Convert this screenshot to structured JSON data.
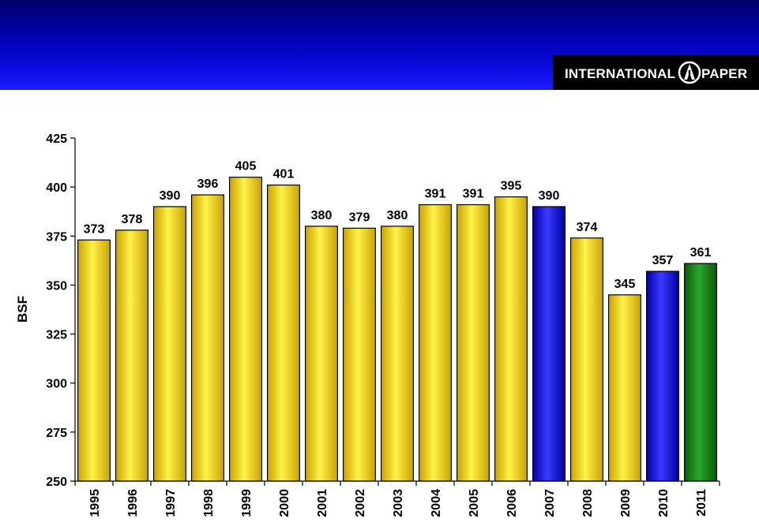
{
  "header": {
    "logo": {
      "left_text": "INTERNATIONAL",
      "right_text": "PAPER"
    }
  },
  "chart_data": {
    "type": "bar",
    "ylabel": "BSF",
    "xlabel": "",
    "ylim": [
      250,
      425
    ],
    "yticks": [
      250,
      275,
      300,
      325,
      350,
      375,
      400,
      425
    ],
    "categories": [
      "1995",
      "1996",
      "1997",
      "1998",
      "1999",
      "2000",
      "2001",
      "2002",
      "2003",
      "2004",
      "2005",
      "2006",
      "2007",
      "2008",
      "2009",
      "2010",
      "2011"
    ],
    "values": [
      373,
      378,
      390,
      396,
      405,
      401,
      380,
      379,
      380,
      391,
      391,
      395,
      390,
      374,
      345,
      357,
      361
    ],
    "value_labels": [
      "373",
      "378",
      "390",
      "396",
      "405",
      "401",
      "380",
      "379",
      "380",
      "391",
      "391",
      "395",
      "390",
      "374",
      "345",
      "357",
      "361"
    ],
    "bar_colors": [
      "#f2d200",
      "#f2d200",
      "#f2d200",
      "#f2d200",
      "#f2d200",
      "#f2d200",
      "#f2d200",
      "#f2d200",
      "#f2d200",
      "#f2d200",
      "#f2d200",
      "#f2d200",
      "#1010ff",
      "#f2d200",
      "#f2d200",
      "#1010ff",
      "#1a8a1a"
    ],
    "grid": false,
    "legend": "none"
  }
}
